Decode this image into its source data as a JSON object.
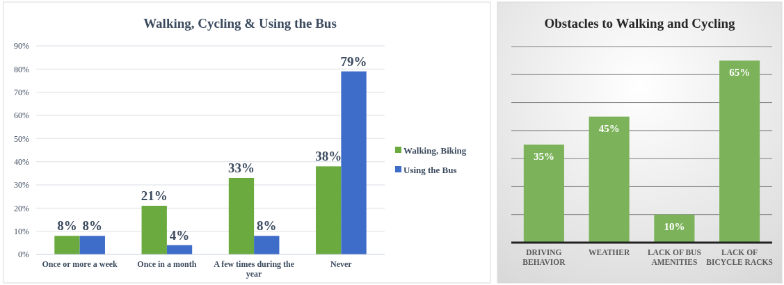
{
  "chart_data": [
    {
      "type": "bar",
      "title": "Walking, Cycling & Using the Bus",
      "categories": [
        "Once or more a week",
        "Once in a month",
        "A few times during the year",
        "Never"
      ],
      "series": [
        {
          "name": "Walking, Biking",
          "color": "#6aaa3e",
          "values": [
            8,
            21,
            33,
            38
          ],
          "value_labels": [
            "8%",
            "21%",
            "33%",
            "38%"
          ]
        },
        {
          "name": "Using the Bus",
          "color": "#3d6cc9",
          "values": [
            8,
            4,
            8,
            79
          ],
          "value_labels": [
            "8%",
            "4%",
            "8%",
            "79%"
          ]
        }
      ],
      "ylim": [
        0,
        90
      ],
      "yticks": [
        {
          "value": 0,
          "label": "0%"
        },
        {
          "value": 10,
          "label": "10%"
        },
        {
          "value": 20,
          "label": "20%"
        },
        {
          "value": 30,
          "label": "30%"
        },
        {
          "value": 40,
          "label": "40%"
        },
        {
          "value": 50,
          "label": "50%"
        },
        {
          "value": 60,
          "label": "60%"
        },
        {
          "value": 70,
          "label": "70%"
        },
        {
          "value": 80,
          "label": "80%"
        },
        {
          "value": 90,
          "label": "90%"
        }
      ],
      "grid": "y",
      "legend": "right"
    },
    {
      "type": "bar",
      "title": "Obstacles to Walking and Cycling",
      "categories": [
        "DRIVING BEHAVIOR",
        "WEATHER",
        "LACK OF BUS AMENITIES",
        "LACK OF BICYCLE RACKS"
      ],
      "series": [
        {
          "color": "#7cb35a",
          "values": [
            35,
            45,
            10,
            65
          ],
          "value_labels": [
            "35%",
            "45%",
            "10%",
            "65%"
          ]
        }
      ],
      "ylim": [
        0,
        70
      ],
      "yticks": [
        {
          "value": 0,
          "label": null
        },
        {
          "value": 10,
          "label": null
        },
        {
          "value": 20,
          "label": null
        },
        {
          "value": 30,
          "label": null
        },
        {
          "value": 40,
          "label": null
        },
        {
          "value": 50,
          "label": null
        },
        {
          "value": 60,
          "label": null
        },
        {
          "value": 70,
          "label": null
        }
      ],
      "grid": "y",
      "tick_labels": "x"
    }
  ]
}
